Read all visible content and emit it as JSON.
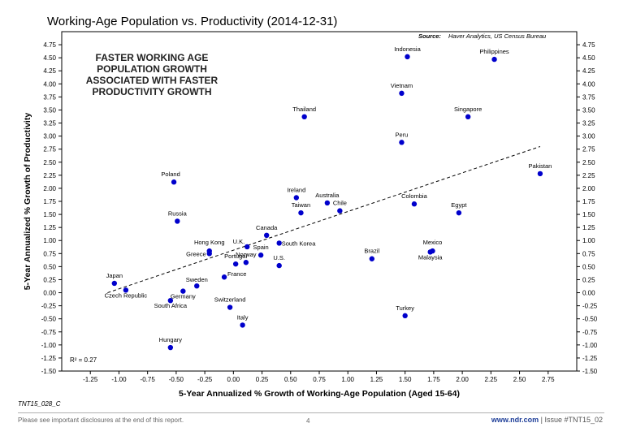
{
  "title": "Working-Age Population vs. Productivity (2014-12-31)",
  "doc_code": "TNT15_028_C",
  "footer": {
    "disclaimer": "Please see important disclosures at the end of this report.",
    "page": "4",
    "url": "www.ndr.com",
    "issue": "| Issue #TNT15_02"
  },
  "chart_data": {
    "type": "scatter",
    "source_label": "Source:",
    "source": "Haver Analytics, US Census Bureau",
    "callout": [
      "FASTER WORKING AGE",
      "POPULATION GROWTH",
      "ASSOCIATED WITH FASTER",
      "PRODUCTIVITY GROWTH"
    ],
    "xlabel": "5-Year Annualized % Growth of Working-Age Population (Aged 15-64)",
    "ylabel": "5-Year Annualized % Growth of Productivity",
    "r_squared": "R² = 0.27",
    "xlim": [
      -1.5,
      3.0
    ],
    "ylim": [
      -1.5,
      5.0
    ],
    "x_ticks": [
      "-1.25",
      "-1.00",
      "-0.75",
      "-0.50",
      "-0.25",
      "0.00",
      "0.25",
      "0.50",
      "0.75",
      "1.00",
      "1.25",
      "1.50",
      "1.75",
      "2.00",
      "2.25",
      "2.50",
      "2.75"
    ],
    "y_ticks": [
      "-1.50",
      "-1.25",
      "-1.00",
      "-0.75",
      "-0.50",
      "-0.25",
      "0.00",
      "0.25",
      "0.50",
      "0.75",
      "1.00",
      "1.25",
      "1.50",
      "1.75",
      "2.00",
      "2.25",
      "2.50",
      "2.75",
      "3.00",
      "3.25",
      "3.50",
      "3.75",
      "4.00",
      "4.25",
      "4.50",
      "4.75"
    ],
    "trendline": {
      "x": [
        -1.1,
        2.68
      ],
      "y": [
        0.0,
        2.8
      ]
    },
    "marker_color": "#0000cc",
    "points": [
      {
        "name": "Indonesia",
        "x": 1.52,
        "y": 4.52
      },
      {
        "name": "Philippines",
        "x": 2.28,
        "y": 4.47
      },
      {
        "name": "Vietnam",
        "x": 1.47,
        "y": 3.82
      },
      {
        "name": "Thailand",
        "x": 0.62,
        "y": 3.37
      },
      {
        "name": "Singapore",
        "x": 2.05,
        "y": 3.37
      },
      {
        "name": "Peru",
        "x": 1.47,
        "y": 2.88
      },
      {
        "name": "Pakistan",
        "x": 2.68,
        "y": 2.28
      },
      {
        "name": "Poland",
        "x": -0.52,
        "y": 2.12
      },
      {
        "name": "Ireland",
        "x": 0.55,
        "y": 1.82
      },
      {
        "name": "Australia",
        "x": 0.82,
        "y": 1.72
      },
      {
        "name": "Colombia",
        "x": 1.58,
        "y": 1.7
      },
      {
        "name": "Chile",
        "x": 0.93,
        "y": 1.57
      },
      {
        "name": "Taiwan",
        "x": 0.59,
        "y": 1.53
      },
      {
        "name": "Egypt",
        "x": 1.97,
        "y": 1.53
      },
      {
        "name": "Russia",
        "x": -0.49,
        "y": 1.37
      },
      {
        "name": "Canada",
        "x": 0.29,
        "y": 1.1
      },
      {
        "name": "South Korea",
        "x": 0.4,
        "y": 0.95
      },
      {
        "name": "U.K.",
        "x": 0.12,
        "y": 0.88
      },
      {
        "name": "Hong Kong",
        "x": -0.21,
        "y": 0.8
      },
      {
        "name": "Greece",
        "x": -0.21,
        "y": 0.75
      },
      {
        "name": "Spain",
        "x": 0.24,
        "y": 0.72
      },
      {
        "name": "Mexico",
        "x": 1.74,
        "y": 0.8
      },
      {
        "name": "Malaysia",
        "x": 1.72,
        "y": 0.78
      },
      {
        "name": "Brazil",
        "x": 1.21,
        "y": 0.65
      },
      {
        "name": "Norway",
        "x": 0.11,
        "y": 0.58
      },
      {
        "name": "U.S.",
        "x": 0.4,
        "y": 0.52
      },
      {
        "name": "Portugal",
        "x": 0.02,
        "y": 0.55
      },
      {
        "name": "France",
        "x": -0.08,
        "y": 0.3
      },
      {
        "name": "Japan",
        "x": -1.04,
        "y": 0.18
      },
      {
        "name": "Czech Republic",
        "x": -0.94,
        "y": 0.05
      },
      {
        "name": "Sweden",
        "x": -0.32,
        "y": 0.13
      },
      {
        "name": "Germany",
        "x": -0.44,
        "y": 0.03
      },
      {
        "name": "South Africa",
        "x": -0.55,
        "y": -0.15
      },
      {
        "name": "Switzerland",
        "x": -0.03,
        "y": -0.28
      },
      {
        "name": "Turkey",
        "x": 1.5,
        "y": -0.44
      },
      {
        "name": "Italy",
        "x": 0.08,
        "y": -0.62
      },
      {
        "name": "Hungary",
        "x": -0.55,
        "y": -1.05
      }
    ]
  }
}
